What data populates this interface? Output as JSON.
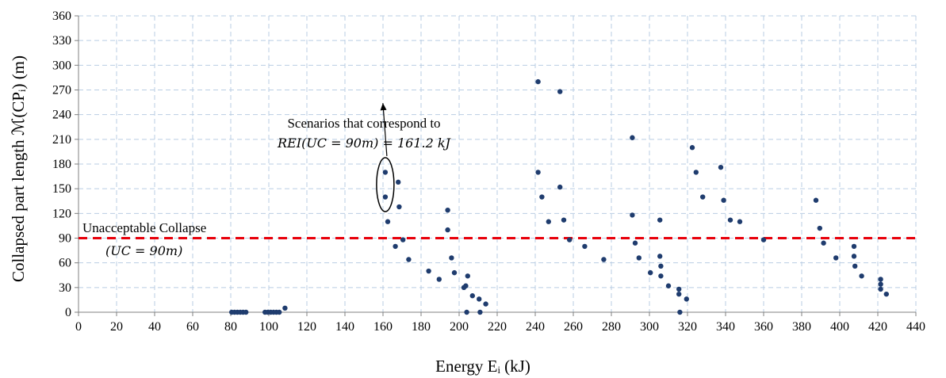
{
  "chart_data": {
    "type": "scatter",
    "xlabel": "Energy Eᵢ (kJ)",
    "ylabel": "Collapsed part length ℳ(CPᵢ) (m)",
    "xlim": [
      0,
      440
    ],
    "ylim": [
      0,
      360
    ],
    "x_ticks": [
      0,
      20,
      40,
      60,
      80,
      100,
      120,
      140,
      160,
      180,
      200,
      220,
      240,
      260,
      280,
      300,
      320,
      340,
      360,
      380,
      400,
      420,
      440
    ],
    "y_ticks": [
      0,
      30,
      60,
      90,
      120,
      150,
      180,
      210,
      240,
      270,
      300,
      330,
      360
    ],
    "grid": "dashed",
    "point_color": "#1f3c6e",
    "threshold": {
      "y": 90,
      "color": "#e8000b",
      "label_line1": "Unacceptable Collapse",
      "label_line2": "(UC = 90m)"
    },
    "annotation": {
      "line1": "Scenarios that correspond to",
      "line2": "REI(UC = 90m) = 161.2 kJ",
      "ellipse_center": [
        161.2,
        155
      ],
      "arrow_to": [
        161.2,
        254
      ]
    },
    "points": [
      [
        80.5,
        0
      ],
      [
        82,
        0
      ],
      [
        83.5,
        0
      ],
      [
        85,
        0
      ],
      [
        86.5,
        0
      ],
      [
        88,
        0
      ],
      [
        98,
        0
      ],
      [
        99.5,
        0
      ],
      [
        101,
        0
      ],
      [
        102.5,
        0
      ],
      [
        104,
        0
      ],
      [
        105.5,
        0
      ],
      [
        108.5,
        5
      ],
      [
        161.2,
        170
      ],
      [
        161.2,
        140
      ],
      [
        162.5,
        110
      ],
      [
        166.5,
        80
      ],
      [
        168,
        158
      ],
      [
        168.5,
        128
      ],
      [
        170.5,
        88
      ],
      [
        173.5,
        64
      ],
      [
        184,
        50
      ],
      [
        189.5,
        40
      ],
      [
        194,
        124
      ],
      [
        194,
        100
      ],
      [
        196,
        66
      ],
      [
        197.5,
        48
      ],
      [
        202.5,
        30
      ],
      [
        203.5,
        32
      ],
      [
        204.5,
        44
      ],
      [
        204,
        0
      ],
      [
        207,
        20
      ],
      [
        210.5,
        16
      ],
      [
        211,
        0
      ],
      [
        214,
        10
      ],
      [
        241.5,
        280
      ],
      [
        241.5,
        170
      ],
      [
        243.5,
        140
      ],
      [
        247,
        110
      ],
      [
        253,
        268
      ],
      [
        253,
        152
      ],
      [
        255,
        112
      ],
      [
        258,
        88
      ],
      [
        266,
        80
      ],
      [
        276,
        64
      ],
      [
        291,
        212
      ],
      [
        291,
        118
      ],
      [
        292.5,
        84
      ],
      [
        294.5,
        66
      ],
      [
        300.5,
        48
      ],
      [
        305.5,
        112
      ],
      [
        305.5,
        68
      ],
      [
        306,
        56
      ],
      [
        306,
        44
      ],
      [
        310,
        32
      ],
      [
        315.5,
        28
      ],
      [
        315.5,
        22
      ],
      [
        316,
        0
      ],
      [
        319.5,
        16
      ],
      [
        322.5,
        200
      ],
      [
        324.5,
        170
      ],
      [
        328,
        140
      ],
      [
        337.5,
        176
      ],
      [
        339,
        136
      ],
      [
        342.5,
        112
      ],
      [
        347.5,
        110
      ],
      [
        360,
        88
      ],
      [
        387.5,
        136
      ],
      [
        389.5,
        102
      ],
      [
        391.5,
        84
      ],
      [
        398,
        66
      ],
      [
        407.5,
        80
      ],
      [
        407.5,
        68
      ],
      [
        408,
        56
      ],
      [
        411.5,
        44
      ],
      [
        421.5,
        40
      ],
      [
        421.5,
        34
      ],
      [
        421.5,
        28
      ],
      [
        424.5,
        22
      ]
    ]
  }
}
